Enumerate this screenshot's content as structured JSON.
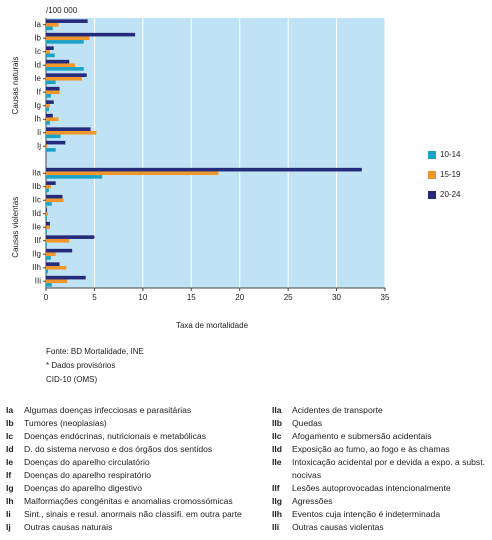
{
  "chart_data": {
    "type": "hbar",
    "unit_label": "/100 000",
    "xlabel": "Taxa de mortalidade",
    "categories": [
      "Ia",
      "Ib",
      "Ic",
      "Id",
      "Ie",
      "If",
      "Ig",
      "Ih",
      "Ii",
      "Ij",
      null,
      "IIa",
      "IIb",
      "IIc",
      "IId",
      "IIe",
      "IIf",
      "IIg",
      "IIh",
      "IIi"
    ],
    "group_labels": [
      "Causas naturais",
      "Causas violentas"
    ],
    "series": [
      {
        "name": "10-14",
        "color": "#1ba3c6",
        "values": [
          0.7,
          3.9,
          0.9,
          3.9,
          1.0,
          0.5,
          0.3,
          0.4,
          1.5,
          1.0,
          null,
          5.8,
          0.3,
          0.6,
          0.1,
          0.1,
          0.1,
          0.5,
          0.2,
          0.6
        ]
      },
      {
        "name": "15-19",
        "color": "#f0962a",
        "values": [
          1.3,
          4.5,
          0.4,
          3.0,
          3.7,
          1.4,
          0.4,
          1.3,
          5.2,
          0.1,
          null,
          17.8,
          0.5,
          1.8,
          0.2,
          0.4,
          2.4,
          1.0,
          2.1,
          2.2
        ]
      },
      {
        "name": "20-24",
        "color": "#262a7a",
        "values": [
          4.3,
          9.2,
          0.8,
          2.4,
          4.2,
          1.4,
          0.8,
          0.7,
          4.6,
          2.0,
          null,
          32.6,
          1.0,
          1.7,
          0.1,
          0.4,
          5.0,
          2.7,
          1.4,
          4.1
        ]
      }
    ],
    "xlim": [
      0,
      35
    ],
    "xticks": [
      0,
      5,
      10,
      15,
      20,
      25,
      30,
      35
    ],
    "grid": true,
    "plot_background": "#bfe3f5",
    "notes": [
      "Fonte: BD Mortalidade, INE",
      "* Dados provisórios",
      "CID-10 (OMS)"
    ]
  },
  "key": {
    "left": [
      {
        "code": "Ia",
        "text": "Algumas doenças infecciosas e parasitárias"
      },
      {
        "code": "Ib",
        "text": "Tumores (neoplasias)"
      },
      {
        "code": "Ic",
        "text": "Doenças endócrinas, nutricionais e metabólicas"
      },
      {
        "code": "Id",
        "text": "D. do sistema nervoso e dos órgãos dos sentidos"
      },
      {
        "code": "Ie",
        "text": "Doenças do aparelho circulatório"
      },
      {
        "code": "If",
        "text": "Doenças do aparelho respiratório"
      },
      {
        "code": "Ig",
        "text": "Doenças do aparelho digestivo"
      },
      {
        "code": "Ih",
        "text": "Malformações congénitas e anomalias cromossómicas"
      },
      {
        "code": "Ii",
        "text": "Sint., sinais e resul. anormais não classifi. em outra parte"
      },
      {
        "code": "Ij",
        "text": "Outras causas naturais"
      }
    ],
    "right": [
      {
        "code": "IIa",
        "text": "Acidentes de transporte"
      },
      {
        "code": "IIb",
        "text": "Quedas"
      },
      {
        "code": "IIc",
        "text": "Afogamento e submersão acidentais"
      },
      {
        "code": "IId",
        "text": "Exposição ao fumo, ao fogo e às chamas"
      },
      {
        "code": "IIe",
        "text": "Intoxicação acidental por e devida a expo. a subst. nocivas"
      },
      {
        "code": "IIf",
        "text": "Lesões autoprovocadas intencionalmente"
      },
      {
        "code": "IIg",
        "text": "Agressões"
      },
      {
        "code": "IIh",
        "text": "Eventos cuja intenção é indeterminada"
      },
      {
        "code": "IIi",
        "text": "Outras causas violentas"
      }
    ]
  }
}
